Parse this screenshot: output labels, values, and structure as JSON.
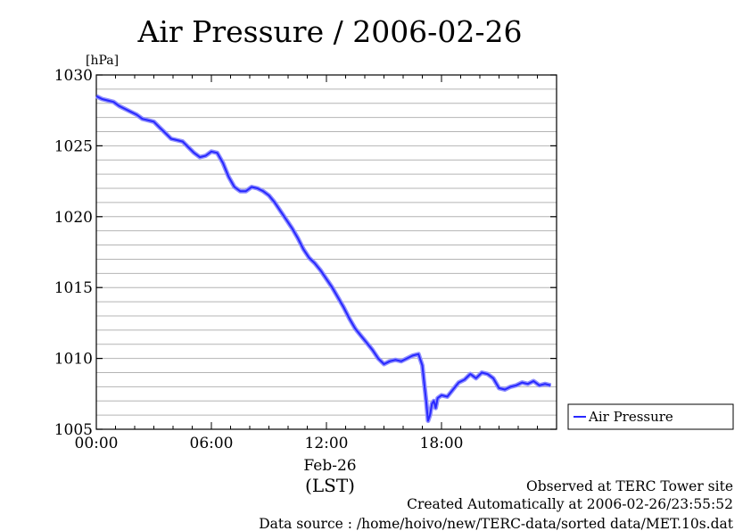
{
  "chart_data": {
    "type": "line",
    "title": "Air Pressure / 2006-02-26",
    "ylabel": "[hPa]",
    "xlabel": "(LST)",
    "date_label": "Feb-26",
    "ylim": [
      1005,
      1030
    ],
    "xlim_hours": [
      0,
      24
    ],
    "y_ticks": [
      "1005",
      "1010",
      "1015",
      "1020",
      "1025",
      "1030"
    ],
    "x_ticks": [
      {
        "hour": 0,
        "label": "00:00"
      },
      {
        "hour": 6,
        "label": "06:00"
      },
      {
        "hour": 12,
        "label": "12:00"
      },
      {
        "hour": 18,
        "label": "18:00"
      }
    ],
    "grid": "horizontal every 1 hPa",
    "legend_position": "right",
    "series": [
      {
        "name": "Air Pressure",
        "color": "#2828ff",
        "hours": [
          0.0,
          0.3,
          0.6,
          0.9,
          1.2,
          1.5,
          1.8,
          2.1,
          2.4,
          2.7,
          3.0,
          3.3,
          3.6,
          3.9,
          4.2,
          4.5,
          4.8,
          5.1,
          5.4,
          5.7,
          6.0,
          6.3,
          6.6,
          6.9,
          7.2,
          7.5,
          7.8,
          8.1,
          8.4,
          8.7,
          9.0,
          9.3,
          9.6,
          9.9,
          10.2,
          10.5,
          10.8,
          11.1,
          11.4,
          11.7,
          12.0,
          12.3,
          12.6,
          12.9,
          13.2,
          13.5,
          13.8,
          14.1,
          14.4,
          14.7,
          15.0,
          15.3,
          15.6,
          15.9,
          16.2,
          16.5,
          16.8,
          17.0,
          17.1,
          17.2,
          17.3,
          17.4,
          17.5,
          17.6,
          17.7,
          17.8,
          18.0,
          18.3,
          18.6,
          18.9,
          19.2,
          19.5,
          19.8,
          20.1,
          20.4,
          20.7,
          21.0,
          21.3,
          21.6,
          21.9,
          22.2,
          22.5,
          22.8,
          23.1,
          23.4,
          23.7
        ],
        "values": [
          1028.5,
          1028.3,
          1028.2,
          1028.1,
          1027.8,
          1027.6,
          1027.4,
          1027.2,
          1026.9,
          1026.8,
          1026.7,
          1026.3,
          1025.9,
          1025.5,
          1025.4,
          1025.3,
          1024.9,
          1024.5,
          1024.2,
          1024.3,
          1024.6,
          1024.5,
          1023.8,
          1022.8,
          1022.1,
          1021.8,
          1021.8,
          1022.1,
          1022.0,
          1021.8,
          1021.5,
          1021.0,
          1020.4,
          1019.8,
          1019.2,
          1018.5,
          1017.7,
          1017.1,
          1016.7,
          1016.2,
          1015.6,
          1015.0,
          1014.3,
          1013.6,
          1012.8,
          1012.1,
          1011.6,
          1011.1,
          1010.6,
          1010.0,
          1009.6,
          1009.8,
          1009.9,
          1009.8,
          1010.0,
          1010.2,
          1010.3,
          1009.5,
          1008.2,
          1007.0,
          1005.6,
          1006.0,
          1006.8,
          1007.0,
          1006.5,
          1007.2,
          1007.4,
          1007.3,
          1007.8,
          1008.3,
          1008.5,
          1008.9,
          1008.6,
          1009.0,
          1008.9,
          1008.6,
          1007.9,
          1007.8,
          1008.0,
          1008.1,
          1008.3,
          1008.2,
          1008.4,
          1008.1,
          1008.2,
          1008.1
        ]
      }
    ]
  },
  "footer": {
    "line1": "Observed at TERC Tower site",
    "line2": "Created Automatically at 2006-02-26/23:55:52",
    "line3": "Data source : /home/hoivo/new/TERC-data/sorted  data/MET.10s.dat"
  }
}
